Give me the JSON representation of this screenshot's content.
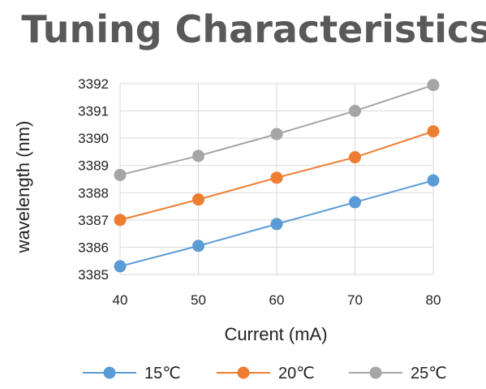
{
  "chart_data": {
    "type": "line",
    "title": "Tuning Characteristics",
    "xlabel": "Current (mA)",
    "ylabel": "wavelength (nm)",
    "x": [
      40,
      50,
      60,
      70,
      80
    ],
    "xlim": [
      40,
      80
    ],
    "ylim": [
      3385,
      3392
    ],
    "yticks": [
      3385,
      3386,
      3387,
      3388,
      3389,
      3390,
      3391,
      3392
    ],
    "xticks": [
      40,
      50,
      60,
      70,
      80
    ],
    "grid": true,
    "legend_position": "bottom",
    "series": [
      {
        "name": "15℃",
        "color": "#5B9BD5",
        "values": [
          3385.3,
          3386.05,
          3386.85,
          3387.65,
          3388.45
        ]
      },
      {
        "name": "20℃",
        "color": "#ED7D31",
        "values": [
          3387.0,
          3387.75,
          3388.55,
          3389.3,
          3390.25
        ]
      },
      {
        "name": "25℃",
        "color": "#A5A5A5",
        "values": [
          3388.65,
          3389.35,
          3390.15,
          3391.0,
          3391.95
        ]
      }
    ]
  }
}
